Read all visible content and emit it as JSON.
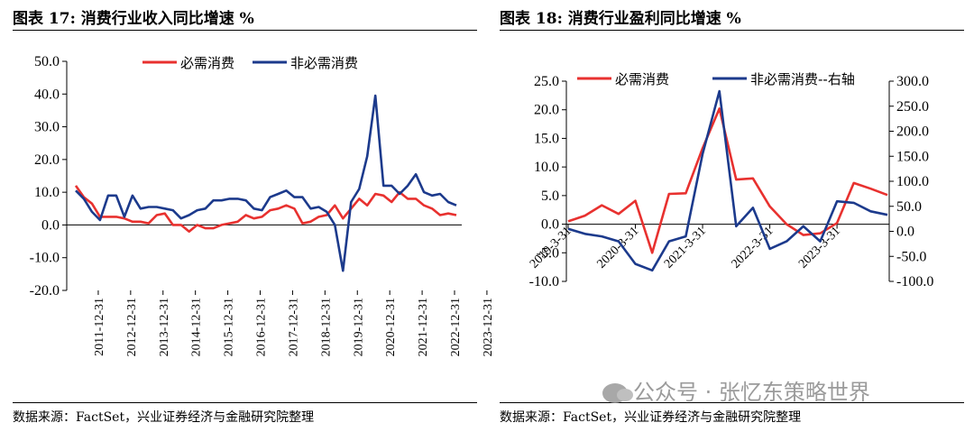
{
  "figures": [
    {
      "title": "图表 17:  消费行业收入同比增速    %",
      "source": "数据来源：FactSet，兴业证券经济与金融研究院整理"
    },
    {
      "title": "图表 18:  消费行业盈利同比增速    %",
      "source": "数据来源：FactSet，兴业证券经济与金融研究院整理"
    }
  ],
  "watermark": "公众号 · 张忆东策略世界",
  "colors": {
    "essential": "#e8312f",
    "nonessential": "#1c3a8c"
  },
  "chart_data": [
    {
      "type": "line",
      "title": "消费行业收入同比增速",
      "ylim": [
        -20,
        50
      ],
      "yticks": [
        "50.0",
        "40.0",
        "30.0",
        "20.0",
        "10.0",
        "0.0",
        "-10.0",
        "-20.0"
      ],
      "xticks": [
        "2011-12-31",
        "2012-12-31",
        "2013-12-31",
        "2014-12-31",
        "2015-12-31",
        "2016-12-31",
        "2017-12-31",
        "2018-12-31",
        "2019-12-31",
        "2020-12-31",
        "2021-12-31",
        "2022-12-31",
        "2023-12-31"
      ],
      "legend": [
        "必需消费",
        "非必需消费"
      ],
      "legend_position": "top",
      "series": [
        {
          "name": "必需消费",
          "color": "#e8312f",
          "values": [
            12.0,
            8.5,
            6.5,
            2.5,
            2.5,
            2.5,
            2.0,
            1.0,
            1.0,
            0.5,
            3.0,
            3.5,
            0.0,
            0.0,
            -2.0,
            0.0,
            -1.0,
            -1.0,
            0.0,
            0.5,
            1.0,
            3.0,
            2.0,
            2.5,
            4.5,
            5.0,
            6.0,
            5.0,
            0.5,
            1.0,
            2.5,
            3.0,
            6.0,
            2.0,
            5.0,
            8.0,
            6.0,
            9.5,
            9.0,
            7.0,
            10.0,
            8.0,
            8.0,
            6.0,
            5.0,
            3.0,
            3.5,
            3.0
          ]
        },
        {
          "name": "非必需消费",
          "color": "#1c3a8c",
          "values": [
            10.5,
            8.0,
            4.0,
            1.5,
            9.0,
            9.0,
            2.5,
            9.0,
            5.0,
            5.5,
            5.5,
            5.0,
            4.5,
            2.0,
            3.0,
            4.5,
            5.0,
            7.5,
            7.5,
            8.0,
            8.0,
            7.5,
            5.0,
            4.5,
            8.5,
            9.5,
            10.5,
            8.5,
            8.5,
            5.0,
            5.5,
            4.0,
            0.0,
            -14.0,
            7.0,
            11.0,
            21.0,
            39.5,
            12.0,
            12.0,
            9.5,
            12.0,
            15.5,
            10.0,
            9.0,
            9.5,
            7.0,
            6.0
          ]
        }
      ]
    },
    {
      "type": "line",
      "title": "消费行业盈利同比增速",
      "ylim_left": [
        -10,
        25
      ],
      "ylim_right": [
        -100,
        300
      ],
      "yticks_left": [
        "25.0",
        "20.0",
        "15.0",
        "10.0",
        "5.0",
        "0.0",
        "-5.0",
        "-10.0"
      ],
      "yticks_right": [
        "300.0",
        "250.0",
        "200.0",
        "150.0",
        "100.0",
        "50.0",
        "0.0",
        "-50.0",
        "-100.0"
      ],
      "xticks": [
        "2019-3-31",
        "2020-3-31",
        "2021-3-31",
        "2022-3-31",
        "2023-3-31"
      ],
      "legend": [
        "必需消费",
        "非必需消费--右轴"
      ],
      "legend_position": "top",
      "series": [
        {
          "name": "必需消费",
          "axis": "left",
          "color": "#e8312f",
          "values": [
            0.5,
            1.5,
            3.3,
            1.8,
            4.1,
            -5.0,
            5.3,
            5.4,
            13.3,
            20.2,
            7.8,
            8.0,
            3.1,
            0.0,
            -1.9,
            -1.6,
            0.2,
            7.2,
            6.2,
            5.1
          ]
        },
        {
          "name": "非必需消费--右轴",
          "axis": "right",
          "color": "#1c3a8c",
          "values": [
            5.0,
            -5.0,
            -10.0,
            -20.0,
            -65.0,
            -78.0,
            -20.0,
            -10.0,
            155.0,
            280.0,
            10.0,
            47.0,
            -35.0,
            -20.0,
            10.0,
            -20.0,
            60.0,
            57.0,
            40.0,
            33.0
          ]
        }
      ]
    }
  ]
}
